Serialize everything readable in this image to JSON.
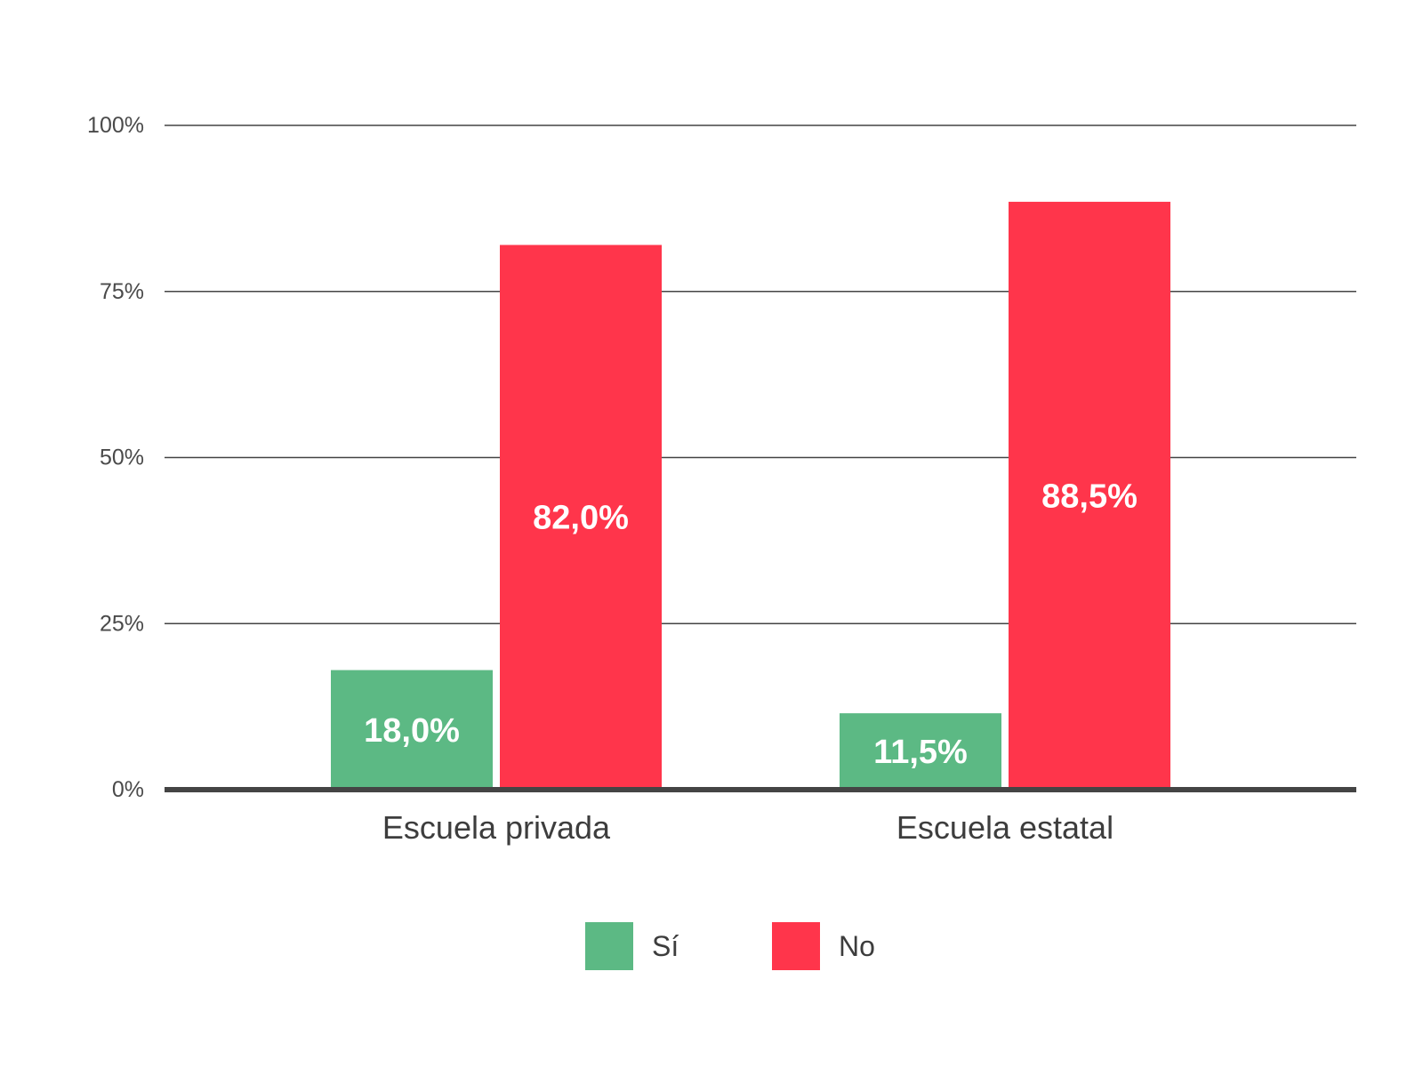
{
  "chart_data": {
    "type": "bar",
    "title": "",
    "xlabel": "",
    "ylabel": "",
    "categories": [
      "Escuela privada",
      "Escuela estatal"
    ],
    "series": [
      {
        "name": "Sí",
        "color": "#5cb984",
        "values": [
          18.0,
          11.5
        ],
        "labels": [
          "18,0%",
          "11,5%"
        ]
      },
      {
        "name": "No",
        "color": "#ff354b",
        "values": [
          82.0,
          88.5
        ],
        "labels": [
          "82,0%",
          "88,5%"
        ]
      }
    ],
    "ylim": [
      0,
      100
    ],
    "yticks": [
      {
        "value": 0,
        "label": "0%"
      },
      {
        "value": 25,
        "label": "25%"
      },
      {
        "value": 50,
        "label": "50%"
      },
      {
        "value": 75,
        "label": "75%"
      },
      {
        "value": 100,
        "label": "100%"
      }
    ],
    "grid": true,
    "legend_position": "bottom-center"
  }
}
